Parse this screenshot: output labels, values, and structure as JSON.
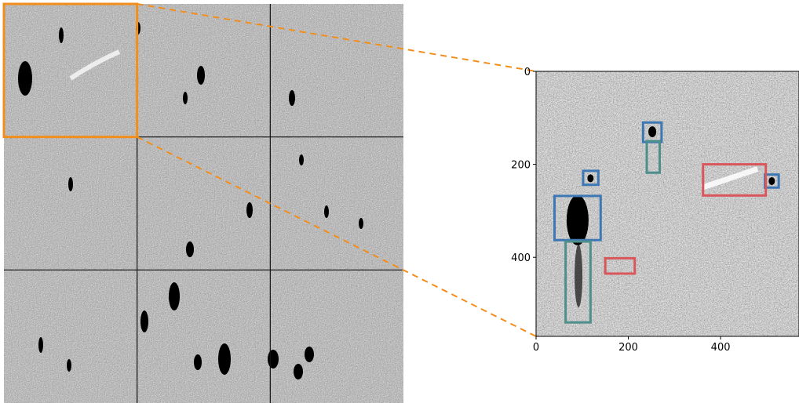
{
  "figure": {
    "mosaic": {
      "rows": 3,
      "cols": 3,
      "highlighted_tile": {
        "row": 0,
        "col": 0
      },
      "highlight_color": "#f28e1c",
      "connector_color": "#f28e1c",
      "grid_line_color": "#111111"
    },
    "zoom_plot": {
      "xlim": [
        0,
        570
      ],
      "ylim": [
        570,
        0
      ],
      "x_ticks": [
        "0",
        "200",
        "400"
      ],
      "y_ticks": [
        "0",
        "200",
        "400"
      ],
      "x_tick_values": [
        0,
        200,
        400
      ],
      "y_tick_values": [
        0,
        200,
        400
      ],
      "boxes": [
        {
          "label": "blue",
          "color": "#3d78b5",
          "x0": 40,
          "y0": 268,
          "x1": 140,
          "y1": 363
        },
        {
          "label": "blue",
          "color": "#3d78b5",
          "x0": 102,
          "y0": 214,
          "x1": 135,
          "y1": 244
        },
        {
          "label": "blue",
          "color": "#3d78b5",
          "x0": 232,
          "y0": 110,
          "x1": 272,
          "y1": 152
        },
        {
          "label": "blue",
          "color": "#3d78b5",
          "x0": 496,
          "y0": 222,
          "x1": 526,
          "y1": 250
        },
        {
          "label": "teal",
          "color": "#4e8f8c",
          "x0": 64,
          "y0": 366,
          "x1": 118,
          "y1": 540
        },
        {
          "label": "teal",
          "color": "#4e8f8c",
          "x0": 240,
          "y0": 150,
          "x1": 268,
          "y1": 218
        },
        {
          "label": "red",
          "color": "#d9565a",
          "x0": 362,
          "y0": 200,
          "x1": 498,
          "y1": 267
        },
        {
          "label": "red",
          "color": "#d9565a",
          "x0": 150,
          "y0": 402,
          "x1": 214,
          "y1": 435
        }
      ]
    }
  }
}
